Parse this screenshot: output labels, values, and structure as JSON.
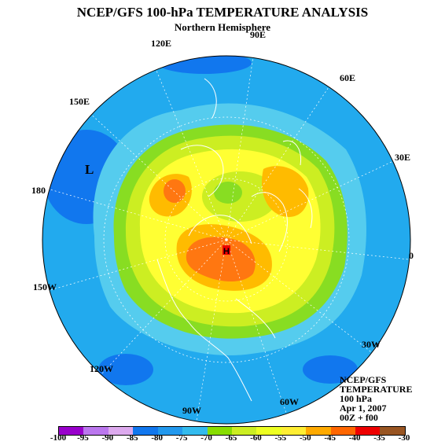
{
  "title": "NCEP/GFS 100-hPa TEMPERATURE ANALYSIS",
  "subtitle": "Northern Hemisphere",
  "lon_labels": {
    "e90": "90E",
    "e120": "120E",
    "e60": "60E",
    "e150": "150E",
    "e30": "30E",
    "l180": "180",
    "l0": "0",
    "w150": "150W",
    "w30": "30W",
    "w120": "120W",
    "w90": "90W",
    "w60": "60W"
  },
  "low_label": "L",
  "high_label": "H",
  "info": {
    "line1": "NCEP/GFS",
    "line2": "TEMPERATURE",
    "line3": "100 hPa",
    "line4": "Apr 1, 2007",
    "line5": "00Z + f00"
  },
  "colorbar": {
    "labels": [
      "-100",
      "-95",
      "-90",
      "-85",
      "-80",
      "-75",
      "-70",
      "-65",
      "-60",
      "-55",
      "-50",
      "-45",
      "-40",
      "-35",
      "-30"
    ],
    "colors": [
      "#9900cc",
      "#bb77ee",
      "#ddaaee",
      "#1177ee",
      "#2299ee",
      "#33bbee",
      "#88dd00",
      "#ccee22",
      "#eeff22",
      "#ffee33",
      "#ffaa00",
      "#ff6600",
      "#ee0000",
      "#995522"
    ]
  },
  "colors": {
    "outer": "#22aaee",
    "ring2": "#55ccee",
    "ring3": "#88dd22",
    "ring4": "#ccee22",
    "ring5": "#ffff33",
    "warm1": "#ffbb00",
    "warm2": "#ff7711",
    "cold_spot": "#1166ee",
    "land": "#ffffff"
  }
}
